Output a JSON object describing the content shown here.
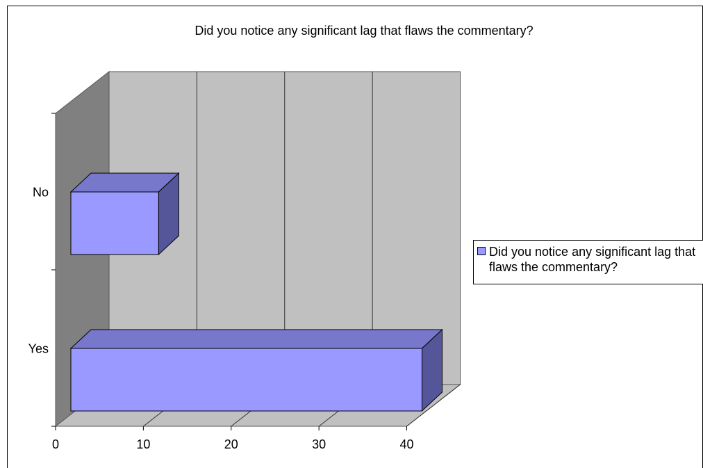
{
  "chart_data": {
    "type": "bar",
    "orientation": "horizontal",
    "style": "3d",
    "title": "Did you notice any significant lag that flaws the commentary?",
    "categories": [
      "No",
      "Yes"
    ],
    "series": [
      {
        "name": "Did you notice any significant lag that flaws the commentary?",
        "values": [
          10,
          40
        ],
        "color": "#9999ff"
      }
    ],
    "xlim": [
      0,
      40
    ],
    "xticks": [
      0,
      10,
      20,
      30,
      40
    ],
    "grid": true,
    "legend_position": "right",
    "colors": {
      "bar_front": "#9999ff",
      "bar_top": "#7777cc",
      "bar_side": "#555599",
      "back_wall": "#c0c0c0",
      "side_wall": "#808080",
      "floor": "#c0c0c0"
    }
  }
}
